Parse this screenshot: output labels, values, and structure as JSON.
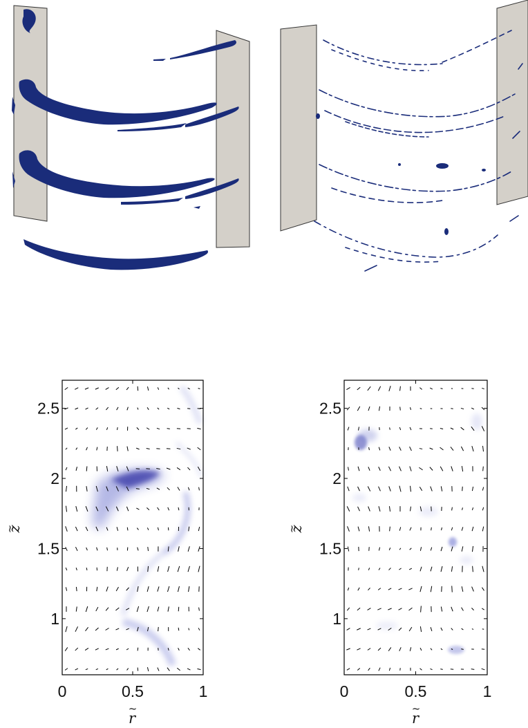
{
  "figure": {
    "render_panels": [
      {
        "name": "left-vortex-render"
      },
      {
        "name": "right-vortex-render"
      }
    ],
    "plane_color": "#d4d0c9",
    "vortex_color": "#1a2c7a",
    "field_color": "#2a2aa0"
  },
  "chart_data": [
    {
      "type": "heatmap",
      "name": "left-field",
      "xlabel": "r",
      "ylabel": "z",
      "x_ticks": [
        "0",
        "0.5",
        "1"
      ],
      "x_tick_values": [
        0,
        0.5,
        1
      ],
      "y_ticks": [
        "1",
        "1.5",
        "2",
        "2.5"
      ],
      "y_tick_values": [
        1,
        1.5,
        2,
        2.5
      ],
      "xlim": [
        0,
        1
      ],
      "ylim": [
        0.6,
        2.7
      ],
      "quiver": true
    },
    {
      "type": "heatmap",
      "name": "right-field",
      "xlabel": "r",
      "ylabel": "z",
      "x_ticks": [
        "0",
        "0.5",
        "1"
      ],
      "x_tick_values": [
        0,
        0.5,
        1
      ],
      "y_ticks": [
        "1",
        "1.5",
        "2",
        "2.5"
      ],
      "y_tick_values": [
        1,
        1.5,
        2,
        2.5
      ],
      "xlim": [
        0,
        1
      ],
      "ylim": [
        0.6,
        2.7
      ],
      "quiver": true
    }
  ]
}
